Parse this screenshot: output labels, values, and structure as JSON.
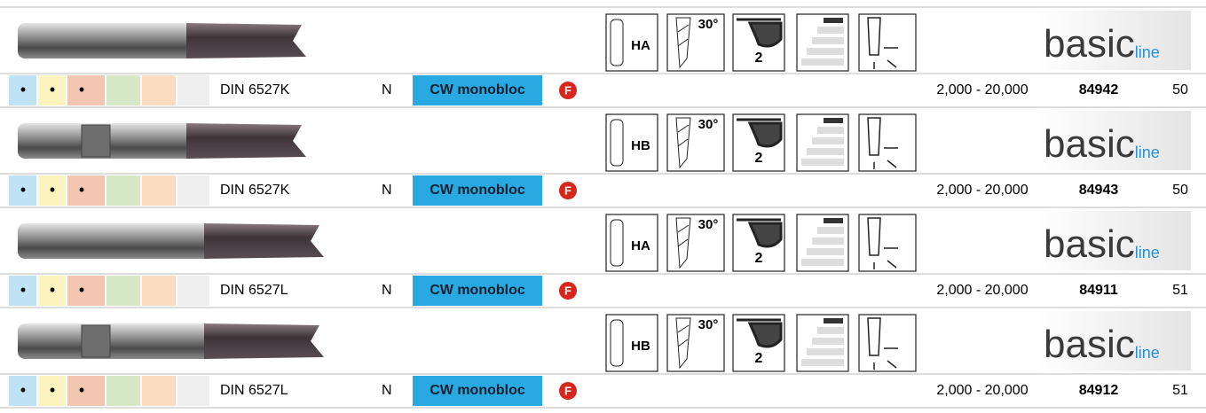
{
  "products": [
    {
      "shank": "HA",
      "helix": "30°",
      "flutes": "2",
      "logo": {
        "main": "basic",
        "sub": "line"
      },
      "dots": [
        "•",
        "•",
        "•"
      ],
      "standard": "DIN 6527K",
      "type": "N",
      "material": "CW monobloc",
      "coating": "F",
      "speed": "2,000 - 20,000",
      "article": "84942",
      "page": "50"
    },
    {
      "shank": "HB",
      "helix": "30°",
      "flutes": "2",
      "logo": {
        "main": "basic",
        "sub": "line"
      },
      "dots": [
        "•",
        "•",
        "•"
      ],
      "standard": "DIN 6527K",
      "type": "N",
      "material": "CW monobloc",
      "coating": "F",
      "speed": "2,000 - 20,000",
      "article": "84943",
      "page": "50"
    },
    {
      "shank": "HA",
      "helix": "30°",
      "flutes": "2",
      "logo": {
        "main": "basic",
        "sub": "line"
      },
      "dots": [
        "•",
        "•",
        "•"
      ],
      "standard": "DIN 6527L",
      "type": "N",
      "material": "CW monobloc",
      "coating": "F",
      "speed": "2,000 - 20,000",
      "article": "84911",
      "page": "51"
    },
    {
      "shank": "HB",
      "helix": "30°",
      "flutes": "2",
      "logo": {
        "main": "basic",
        "sub": "line"
      },
      "dots": [
        "•",
        "•",
        "•"
      ],
      "standard": "DIN 6527L",
      "type": "N",
      "material": "CW monobloc",
      "coating": "F",
      "speed": "2,000 - 20,000",
      "article": "84912",
      "page": "51"
    }
  ]
}
